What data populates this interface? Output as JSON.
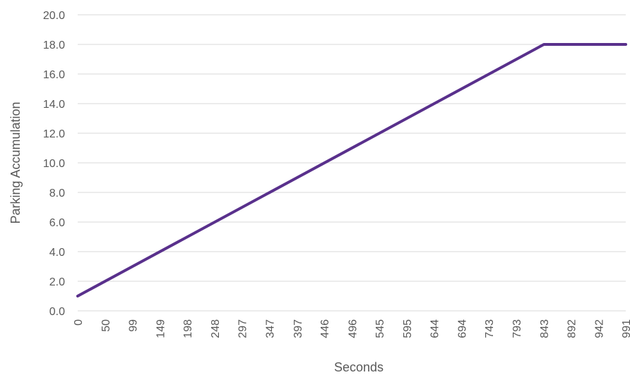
{
  "chart_data": {
    "type": "line",
    "xlabel": "Seconds",
    "ylabel": "Parking Accumulation",
    "ylim": [
      0,
      20
    ],
    "y_ticks": [
      "0.0",
      "2.0",
      "4.0",
      "6.0",
      "8.0",
      "10.0",
      "12.0",
      "14.0",
      "16.0",
      "18.0",
      "20.0"
    ],
    "x_tick_labels": [
      "0",
      "50",
      "99",
      "149",
      "198",
      "248",
      "297",
      "347",
      "397",
      "446",
      "496",
      "545",
      "595",
      "644",
      "694",
      "743",
      "793",
      "843",
      "892",
      "942",
      "991"
    ],
    "grid": true,
    "series": [
      {
        "color": "#59308c",
        "points": [
          [
            0,
            1
          ],
          [
            843,
            18
          ],
          [
            991,
            18
          ]
        ]
      }
    ]
  }
}
